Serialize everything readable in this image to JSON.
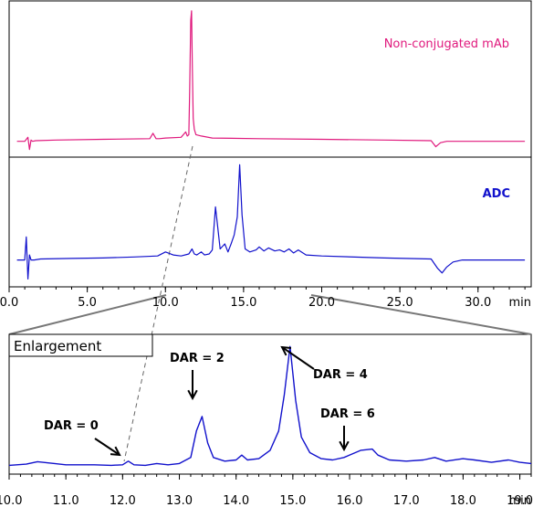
{
  "chart_data": [
    {
      "type": "line",
      "panel": "top",
      "series": [
        {
          "name": "Non-conjugated mAb",
          "color": "#e0197d",
          "x": [
            0.5,
            1.0,
            1.2,
            1.3,
            1.4,
            1.5,
            1.7,
            3.0,
            6.0,
            9.0,
            9.2,
            9.4,
            9.6,
            10.0,
            11.0,
            11.3,
            11.4,
            11.5,
            11.55,
            11.62,
            11.67,
            11.72,
            11.78,
            11.85,
            11.95,
            12.3,
            13.0,
            16.0,
            20.0,
            24.0,
            27.0,
            27.3,
            27.6,
            28.0,
            28.3,
            30.0,
            33.0
          ],
          "y": [
            0.03,
            0.03,
            0.06,
            -0.03,
            0.04,
            0.03,
            0.035,
            0.04,
            0.045,
            0.05,
            0.09,
            0.05,
            0.05,
            0.055,
            0.06,
            0.1,
            0.07,
            0.08,
            0.4,
            0.93,
            1.0,
            0.6,
            0.2,
            0.12,
            0.08,
            0.07,
            0.055,
            0.05,
            0.045,
            0.04,
            0.035,
            -0.01,
            0.02,
            0.03,
            0.03,
            0.03,
            0.03
          ]
        }
      ],
      "xlim": [
        0,
        33.4
      ],
      "ylim": [
        -0.06,
        1.04
      ]
    },
    {
      "type": "line",
      "panel": "middle",
      "series": [
        {
          "name": "ADC",
          "color": "#1111cc",
          "x": [
            0.5,
            1.0,
            1.1,
            1.2,
            1.3,
            1.4,
            1.6,
            2.0,
            4.0,
            6.0,
            8.0,
            9.5,
            10.0,
            10.5,
            11.0,
            11.5,
            11.7,
            11.85,
            12.0,
            12.3,
            12.5,
            12.8,
            13.0,
            13.2,
            13.5,
            13.8,
            14.0,
            14.2,
            14.4,
            14.6,
            14.75,
            14.9,
            15.1,
            15.4,
            15.8,
            16.0,
            16.3,
            16.6,
            17.0,
            17.3,
            17.6,
            17.9,
            18.2,
            18.5,
            19.0,
            20.0,
            24.0,
            27.0,
            27.4,
            27.7,
            28.0,
            28.4,
            29.0,
            31.0,
            33.0
          ],
          "y": [
            0.05,
            0.05,
            0.28,
            -0.14,
            0.1,
            0.05,
            0.05,
            0.06,
            0.065,
            0.07,
            0.08,
            0.09,
            0.13,
            0.1,
            0.09,
            0.11,
            0.16,
            0.11,
            0.1,
            0.13,
            0.1,
            0.11,
            0.15,
            0.58,
            0.16,
            0.21,
            0.13,
            0.21,
            0.3,
            0.48,
            1.0,
            0.5,
            0.16,
            0.13,
            0.15,
            0.18,
            0.14,
            0.17,
            0.14,
            0.15,
            0.13,
            0.16,
            0.12,
            0.15,
            0.1,
            0.09,
            0.07,
            0.06,
            -0.03,
            -0.08,
            -0.02,
            0.03,
            0.05,
            0.05,
            0.05
          ]
        }
      ],
      "xlim": [
        0,
        33.4
      ],
      "ylim": [
        -0.2,
        1.04
      ],
      "xticks": [
        0,
        5,
        10,
        15,
        20,
        25,
        30
      ],
      "xtick_labels": [
        "0.0",
        "5.0",
        "10.0",
        "15.0",
        "20.0",
        "25.0",
        "30.0"
      ],
      "xlabel": "min"
    },
    {
      "type": "line",
      "panel": "bottom",
      "title": "Enlargement",
      "series": [
        {
          "name": "ADC",
          "color": "#1111cc",
          "x": [
            10.0,
            10.3,
            10.5,
            10.8,
            11.0,
            11.5,
            11.8,
            12.0,
            12.1,
            12.2,
            12.4,
            12.6,
            12.8,
            13.0,
            13.2,
            13.3,
            13.4,
            13.5,
            13.6,
            13.8,
            14.0,
            14.1,
            14.2,
            14.4,
            14.6,
            14.75,
            14.85,
            14.95,
            15.05,
            15.15,
            15.3,
            15.5,
            15.7,
            15.9,
            16.1,
            16.2,
            16.4,
            16.5,
            16.7,
            17.0,
            17.3,
            17.5,
            17.7,
            18.0,
            18.2,
            18.5,
            18.8,
            19.0,
            19.2
          ],
          "y": [
            0.015,
            0.025,
            0.045,
            0.03,
            0.02,
            0.02,
            0.015,
            0.02,
            0.05,
            0.02,
            0.015,
            0.03,
            0.02,
            0.03,
            0.08,
            0.3,
            0.42,
            0.2,
            0.08,
            0.05,
            0.06,
            0.1,
            0.06,
            0.07,
            0.14,
            0.3,
            0.6,
            1.0,
            0.55,
            0.25,
            0.12,
            0.07,
            0.06,
            0.08,
            0.12,
            0.14,
            0.15,
            0.1,
            0.06,
            0.05,
            0.06,
            0.08,
            0.05,
            0.07,
            0.06,
            0.04,
            0.06,
            0.04,
            0.03
          ]
        }
      ],
      "xlim": [
        10.0,
        19.2
      ],
      "ylim": [
        -0.05,
        1.07
      ],
      "xticks": [
        10,
        11,
        12,
        13,
        14,
        15,
        16,
        17,
        18,
        19
      ],
      "xtick_labels": [
        "10.0",
        "11.0",
        "12.0",
        "13.0",
        "14.0",
        "15.0",
        "16.0",
        "17.0",
        "18.0",
        "19.0"
      ],
      "xlabel": "min",
      "annotations": [
        {
          "text": "DAR = 0",
          "x": 12.1
        },
        {
          "text": "DAR = 2",
          "x": 13.4
        },
        {
          "text": "DAR = 4",
          "x": 15.0
        },
        {
          "text": "DAR = 6",
          "x": 16.3
        }
      ]
    }
  ]
}
